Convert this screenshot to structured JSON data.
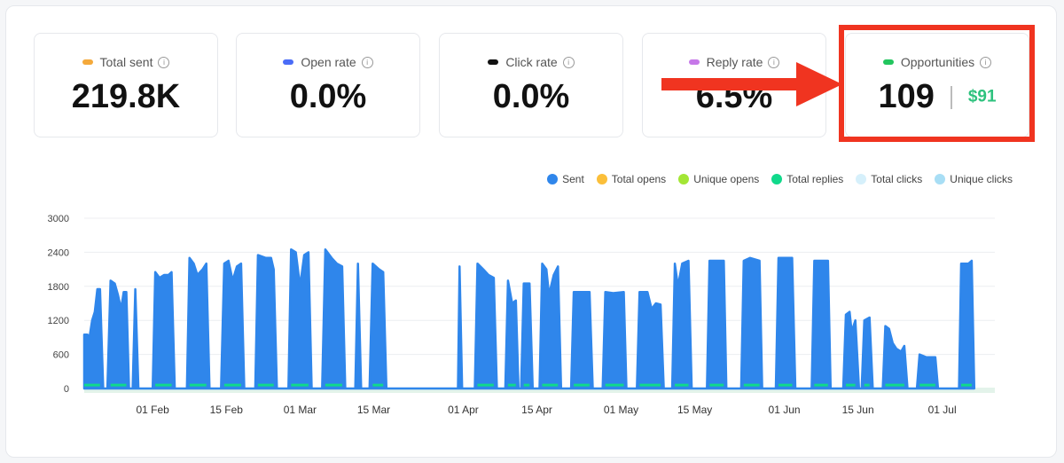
{
  "stats": [
    {
      "label": "Total sent",
      "value": "219.8K",
      "color": "#f4a93b"
    },
    {
      "label": "Open rate",
      "value": "0.0%",
      "color": "#4a6cf7"
    },
    {
      "label": "Click rate",
      "value": "0.0%",
      "color": "#111111"
    },
    {
      "label": "Reply rate",
      "value": "6.5%",
      "color": "#c678e8"
    },
    {
      "label": "Opportunities",
      "value": "109",
      "money": "$91",
      "color": "#22c55e"
    }
  ],
  "info_glyph": "i",
  "highlight_color": "#f03420",
  "legend": [
    {
      "label": "Sent",
      "color": "#2f86eb"
    },
    {
      "label": "Total opens",
      "color": "#fbbf3a"
    },
    {
      "label": "Unique opens",
      "color": "#a3e635"
    },
    {
      "label": "Total replies",
      "color": "#10d98b"
    },
    {
      "label": "Total clicks",
      "color": "#d6f0fb"
    },
    {
      "label": "Unique clicks",
      "color": "#a8def5"
    }
  ],
  "chart_data": {
    "type": "area",
    "y_ticks": [
      "3000",
      "2400",
      "1800",
      "1200",
      "600",
      "0"
    ],
    "ylim": [
      0,
      3000
    ],
    "x_ticks": [
      {
        "label": "01 Feb",
        "day": 19
      },
      {
        "label": "15 Feb",
        "day": 33
      },
      {
        "label": "01 Mar",
        "day": 47
      },
      {
        "label": "15 Mar",
        "day": 61
      },
      {
        "label": "01 Apr",
        "day": 78
      },
      {
        "label": "15 Apr",
        "day": 92
      },
      {
        "label": "01 May",
        "day": 108
      },
      {
        "label": "15 May",
        "day": 122
      },
      {
        "label": "01 Jun",
        "day": 139
      },
      {
        "label": "15 Jun",
        "day": 153
      },
      {
        "label": "01 Jul",
        "day": 169
      }
    ],
    "x_range": [
      6,
      179
    ],
    "grid": true,
    "series": [
      {
        "name": "Sent",
        "color": "#2f86eb",
        "points": [
          [
            6,
            950
          ],
          [
            6.6,
            950
          ],
          [
            7,
            900
          ],
          [
            7.5,
            1200
          ],
          [
            8,
            1350
          ],
          [
            8.5,
            1750
          ],
          [
            9,
            1750
          ],
          [
            9.6,
            0
          ],
          [
            10.4,
            0
          ],
          [
            11,
            1900
          ],
          [
            11.8,
            1850
          ],
          [
            12.4,
            1650
          ],
          [
            13,
            1400
          ],
          [
            13.5,
            1700
          ],
          [
            14,
            1700
          ],
          [
            14.5,
            0
          ],
          [
            15.2,
            0
          ],
          [
            15.7,
            1750
          ],
          [
            16.3,
            0
          ],
          [
            19,
            0
          ],
          [
            19.5,
            2050
          ],
          [
            20.3,
            1950
          ],
          [
            21.2,
            2000
          ],
          [
            22,
            2000
          ],
          [
            22.6,
            2050
          ],
          [
            23.2,
            0
          ],
          [
            25.5,
            0
          ],
          [
            26,
            2300
          ],
          [
            26.8,
            2200
          ],
          [
            27.5,
            2000
          ],
          [
            28.5,
            2100
          ],
          [
            29.2,
            2200
          ],
          [
            29.8,
            0
          ],
          [
            32,
            0
          ],
          [
            32.6,
            2200
          ],
          [
            33.4,
            2250
          ],
          [
            34.2,
            1900
          ],
          [
            35,
            2150
          ],
          [
            35.8,
            2200
          ],
          [
            36.4,
            0
          ],
          [
            38.5,
            0
          ],
          [
            39,
            2350
          ],
          [
            40.5,
            2300
          ],
          [
            41.5,
            2300
          ],
          [
            42,
            2100
          ],
          [
            42.6,
            0
          ],
          [
            44.8,
            0
          ],
          [
            45.3,
            2450
          ],
          [
            46.2,
            2400
          ],
          [
            47,
            1800
          ],
          [
            47.8,
            2350
          ],
          [
            48.6,
            2400
          ],
          [
            49.2,
            0
          ],
          [
            51.2,
            0
          ],
          [
            51.8,
            2450
          ],
          [
            53,
            2300
          ],
          [
            54,
            2200
          ],
          [
            55,
            2150
          ],
          [
            55.6,
            0
          ],
          [
            57.5,
            0
          ],
          [
            58,
            2200
          ],
          [
            58.6,
            0
          ],
          [
            60.2,
            0
          ],
          [
            60.8,
            2200
          ],
          [
            62,
            2100
          ],
          [
            62.8,
            2050
          ],
          [
            63.4,
            0
          ],
          [
            77,
            0
          ],
          [
            77.3,
            2150
          ],
          [
            77.8,
            0
          ],
          [
            80.2,
            0
          ],
          [
            80.7,
            2200
          ],
          [
            81.8,
            2100
          ],
          [
            82.8,
            2000
          ],
          [
            83.8,
            1950
          ],
          [
            84.4,
            0
          ],
          [
            86,
            0
          ],
          [
            86.5,
            1900
          ],
          [
            87.3,
            1500
          ],
          [
            88,
            1550
          ],
          [
            88.5,
            0
          ],
          [
            89,
            0
          ],
          [
            89.5,
            1850
          ],
          [
            90.6,
            1850
          ],
          [
            91.2,
            0
          ],
          [
            92.5,
            0
          ],
          [
            93,
            2200
          ],
          [
            93.8,
            2100
          ],
          [
            94.3,
            1650
          ],
          [
            95.2,
            2000
          ],
          [
            96,
            2150
          ],
          [
            96.6,
            0
          ],
          [
            98.5,
            0
          ],
          [
            99,
            1700
          ],
          [
            101,
            1700
          ],
          [
            102,
            1700
          ],
          [
            102.6,
            0
          ],
          [
            104.5,
            0
          ],
          [
            105,
            1700
          ],
          [
            106.5,
            1680
          ],
          [
            108.5,
            1700
          ],
          [
            109,
            0
          ],
          [
            111,
            0
          ],
          [
            111.5,
            1700
          ],
          [
            113,
            1700
          ],
          [
            113.8,
            1400
          ],
          [
            114.6,
            1500
          ],
          [
            115.5,
            1480
          ],
          [
            116.1,
            0
          ],
          [
            117.7,
            0
          ],
          [
            118.2,
            2200
          ],
          [
            118.8,
            1800
          ],
          [
            119.6,
            2200
          ],
          [
            120.8,
            2250
          ],
          [
            121.4,
            0
          ],
          [
            124.3,
            0
          ],
          [
            124.8,
            2250
          ],
          [
            127.5,
            2250
          ],
          [
            128,
            0
          ],
          [
            130.8,
            0
          ],
          [
            131.3,
            2250
          ],
          [
            132.5,
            2300
          ],
          [
            134.3,
            2250
          ],
          [
            134.8,
            0
          ],
          [
            137.4,
            0
          ],
          [
            137.9,
            2300
          ],
          [
            140.5,
            2300
          ],
          [
            141.1,
            0
          ],
          [
            144.2,
            0
          ],
          [
            144.7,
            2250
          ],
          [
            147.3,
            2250
          ],
          [
            147.8,
            0
          ],
          [
            150.2,
            0
          ],
          [
            150.7,
            1300
          ],
          [
            151.4,
            1350
          ],
          [
            151.8,
            1000
          ],
          [
            152.5,
            1200
          ],
          [
            153.2,
            0
          ],
          [
            153.7,
            0
          ],
          [
            154.2,
            1200
          ],
          [
            155.2,
            1250
          ],
          [
            155.8,
            0
          ],
          [
            157.7,
            0
          ],
          [
            158.2,
            1100
          ],
          [
            158.9,
            1050
          ],
          [
            159.6,
            800
          ],
          [
            160.3,
            700
          ],
          [
            161.2,
            650
          ],
          [
            161.8,
            750
          ],
          [
            162.4,
            0
          ],
          [
            164.2,
            0
          ],
          [
            164.7,
            600
          ],
          [
            166,
            550
          ],
          [
            167.7,
            550
          ],
          [
            168.2,
            0
          ],
          [
            172.2,
            0
          ],
          [
            172.6,
            2200
          ],
          [
            174,
            2200
          ],
          [
            174.6,
            2250
          ],
          [
            175.1,
            0
          ]
        ]
      },
      {
        "name": "Total replies",
        "color": "#10d98b",
        "level": 60
      }
    ]
  }
}
